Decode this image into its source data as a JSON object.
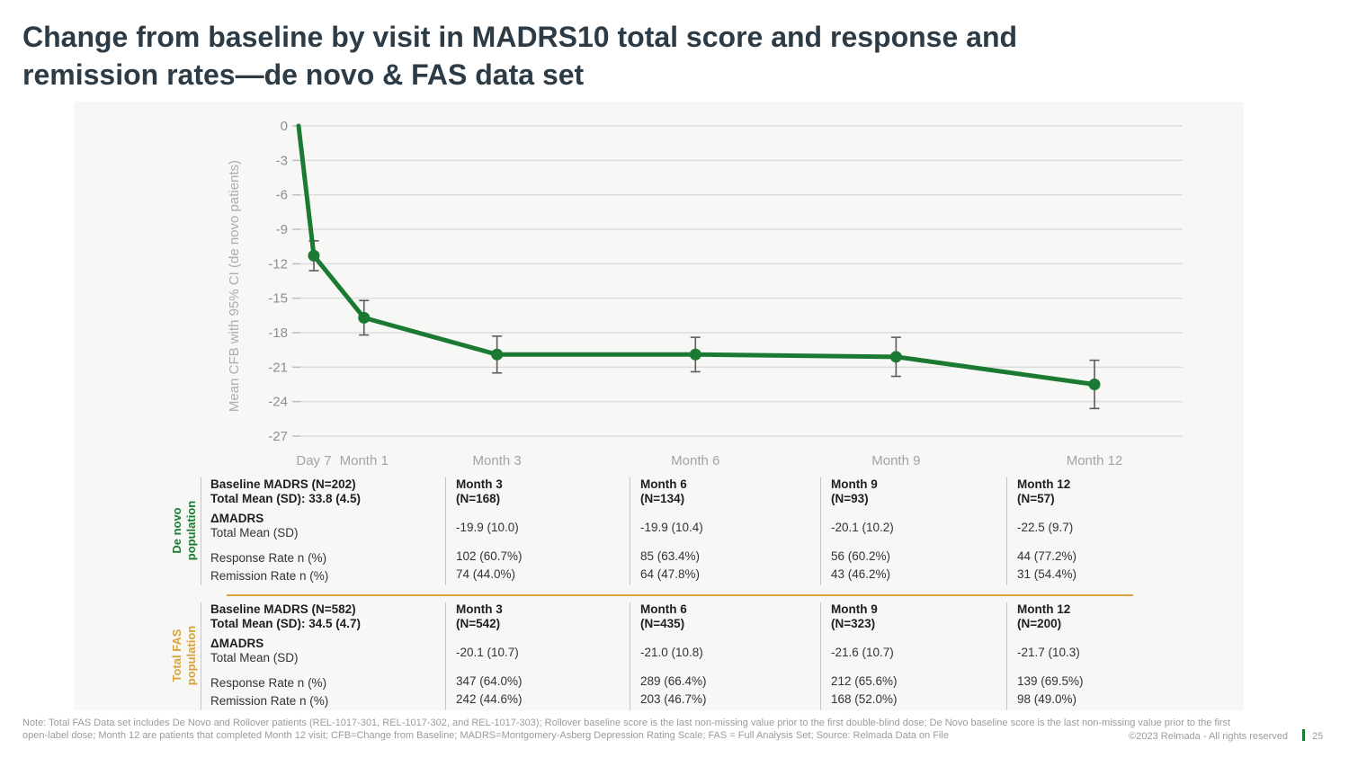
{
  "slide": {
    "title_line1": "Change from baseline by visit in MADRS10 total score and response and",
    "title_line2": "remission rates—de novo & FAS data set",
    "footnote_line1": "Note: Total FAS Data set includes De Novo and Rollover patients (REL-1017-301, REL-1017-302, and REL-1017-303); Rollover baseline score is the last non-missing value prior to the first double-blind dose; De Novo baseline score is the last non-missing value prior to the first",
    "footnote_line2": "open-label dose; Month 12 are patients that completed Month 12 visit; CFB=Change from Baseline; MADRS=Montgomery-Asberg Depression Rating Scale; FAS = Full Analysis Set; Source: Relmada Data on File",
    "copyright": "©2023 Relmada - All rights reserved",
    "page_number": "25"
  },
  "colors": {
    "green": "#1b7a31",
    "gold": "#d6a33e",
    "title_text": "#2c3b45",
    "grid": "#dcdcdc",
    "error_bar": "#5c5c5c",
    "panel_bg": "#f7f7f5",
    "axis_text": "#9a9a9a"
  },
  "chart_data": {
    "type": "line",
    "title": "",
    "xlabel": "",
    "ylabel": "Mean CFB with 95% CI (de novo patients)",
    "ylim": [
      -27,
      0
    ],
    "yticks": [
      0,
      -3,
      -6,
      -9,
      -12,
      -15,
      -18,
      -21,
      -24,
      -27
    ],
    "grid": true,
    "legend_position": "none",
    "x_unit": "days",
    "xticks": [
      {
        "label": "Day 7",
        "day": 7
      },
      {
        "label": "Month 1",
        "day": 30
      },
      {
        "label": "Month 3",
        "day": 91
      },
      {
        "label": "Month 6",
        "day": 182
      },
      {
        "label": "Month 9",
        "day": 274
      },
      {
        "label": "Month 12",
        "day": 365
      }
    ],
    "series": [
      {
        "name": "Mean CFB with 95% CI (de novo patients)",
        "color": "#1b7a31",
        "points": [
          {
            "label": "Baseline",
            "day": 0,
            "value": 0,
            "ci": 0,
            "marker": false
          },
          {
            "label": "Day 7",
            "day": 7,
            "value": -11.3,
            "ci": 1.3,
            "marker": true
          },
          {
            "label": "Month 1",
            "day": 30,
            "value": -16.7,
            "ci": 1.5,
            "marker": true
          },
          {
            "label": "Month 3",
            "day": 91,
            "value": -19.9,
            "ci": 1.6,
            "marker": true
          },
          {
            "label": "Month 6",
            "day": 182,
            "value": -19.9,
            "ci": 1.5,
            "marker": true
          },
          {
            "label": "Month 9",
            "day": 274,
            "value": -20.1,
            "ci": 1.7,
            "marker": true
          },
          {
            "label": "Month 12",
            "day": 365,
            "value": -22.5,
            "ci": 2.1,
            "marker": true
          }
        ]
      }
    ]
  },
  "tables": [
    {
      "group_label": "De novo population",
      "accent_color": "#1b7a31",
      "baseline_line1": "Baseline MADRS (N=202)",
      "baseline_line2": "Total Mean (SD): 33.8 (4.5)",
      "row_labels": {
        "delta_bold": "ΔMADRS",
        "delta_sub": "Total Mean (SD)",
        "response": "Response Rate n (%)",
        "remission": "Remission Rate n (%)"
      },
      "columns": [
        {
          "header_line1": "Month 3",
          "header_line2": "(N=168)",
          "delta": "-19.9 (10.0)",
          "response": "102 (60.7%)",
          "remission": "74  (44.0%)"
        },
        {
          "header_line1": "Month 6",
          "header_line2": "(N=134)",
          "delta": "-19.9 (10.4)",
          "response": "85 (63.4%)",
          "remission": "64 (47.8%)"
        },
        {
          "header_line1": "Month 9",
          "header_line2": "(N=93)",
          "delta": "-20.1 (10.2)",
          "response": "56 (60.2%)",
          "remission": "43 (46.2%)"
        },
        {
          "header_line1": "Month 12",
          "header_line2": "(N=57)",
          "delta": "-22.5 (9.7)",
          "response": "44 (77.2%)",
          "remission": "31 (54.4%)"
        }
      ]
    },
    {
      "group_label": "Total FAS population",
      "accent_color": "#d6a33e",
      "baseline_line1": "Baseline MADRS (N=582)",
      "baseline_line2": "Total Mean (SD): 34.5 (4.7)",
      "row_labels": {
        "delta_bold": "ΔMADRS",
        "delta_sub": "Total Mean (SD)",
        "response": "Response Rate n (%)",
        "remission": "Remission Rate n (%)"
      },
      "columns": [
        {
          "header_line1": "Month 3",
          "header_line2": "(N=542)",
          "delta": "-20.1 (10.7)",
          "response": "347 (64.0%)",
          "remission": "242 (44.6%)"
        },
        {
          "header_line1": "Month 6",
          "header_line2": "(N=435)",
          "delta": "-21.0 (10.8)",
          "response": "289 (66.4%)",
          "remission": "203 (46.7%)"
        },
        {
          "header_line1": "Month 9",
          "header_line2": "(N=323)",
          "delta": "-21.6 (10.7)",
          "response": "212 (65.6%)",
          "remission": "168 (52.0%)"
        },
        {
          "header_line1": "Month 12",
          "header_line2": "(N=200)",
          "delta": "-21.7 (10.3)",
          "response": "139 (69.5%)",
          "remission": "98 (49.0%)"
        }
      ]
    }
  ]
}
